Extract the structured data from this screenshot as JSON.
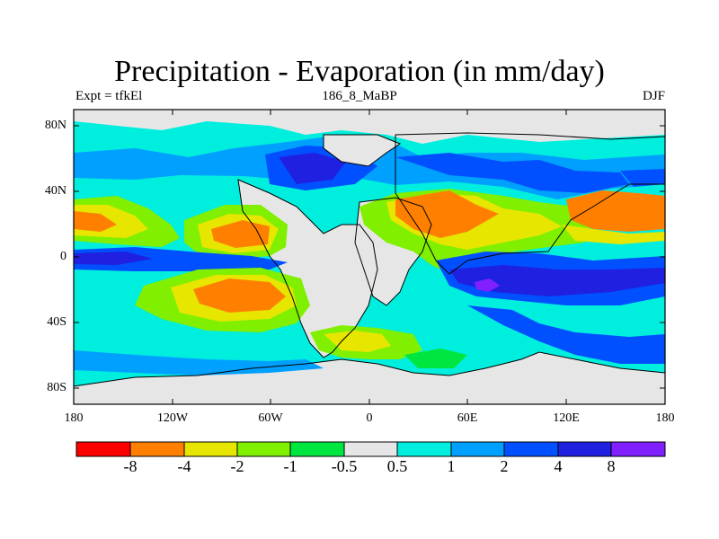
{
  "title": "Precipitation - Evaporation (in mm/day)",
  "subtitle_left": "Expt = tfkEl",
  "subtitle_center": "186_8_MaBP",
  "subtitle_right": "DJF",
  "lat_labels": [
    "80N",
    "40N",
    "0",
    "40S",
    "80S"
  ],
  "lon_labels": [
    "180",
    "120W",
    "60W",
    "0",
    "60E",
    "120E",
    "180"
  ],
  "colorbar": {
    "colors": [
      "#ff0000",
      "#ff8000",
      "#e6e600",
      "#80f000",
      "#00e640",
      "#e6e6e6",
      "#00eedd",
      "#00a0ff",
      "#0050ff",
      "#2020e0",
      "#8020ff"
    ],
    "labels": [
      "-8",
      "-4",
      "-2",
      "-1",
      "-0.5",
      "0.5",
      "1",
      "2",
      "4",
      "8"
    ]
  }
}
